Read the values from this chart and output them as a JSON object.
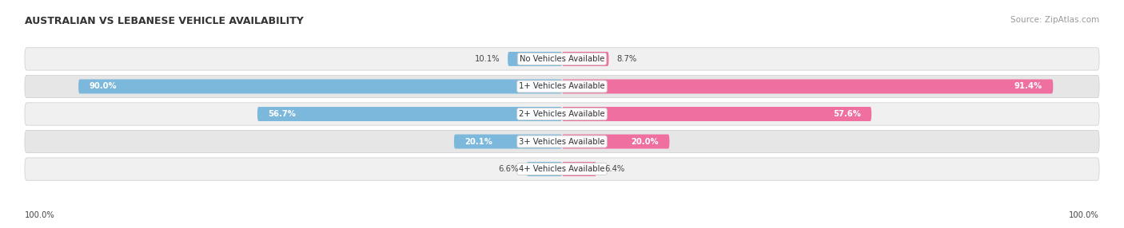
{
  "title": "AUSTRALIAN VS LEBANESE VEHICLE AVAILABILITY",
  "source": "Source: ZipAtlas.com",
  "categories": [
    "No Vehicles Available",
    "1+ Vehicles Available",
    "2+ Vehicles Available",
    "3+ Vehicles Available",
    "4+ Vehicles Available"
  ],
  "australian_values": [
    10.1,
    90.0,
    56.7,
    20.1,
    6.6
  ],
  "lebanese_values": [
    8.7,
    91.4,
    57.6,
    20.0,
    6.4
  ],
  "australian_color": "#7BB8DC",
  "lebanese_color": "#EE6FA0",
  "australian_color_light": "#B8D9EE",
  "lebanese_color_light": "#F5A8C5",
  "row_bg_color": "#F0F0F0",
  "row_alt_bg_color": "#E6E6E6",
  "label_color": "#444444",
  "title_color": "#333333",
  "source_color": "#999999",
  "max_value": 100.0,
  "figsize": [
    14.06,
    2.86
  ],
  "dpi": 100
}
